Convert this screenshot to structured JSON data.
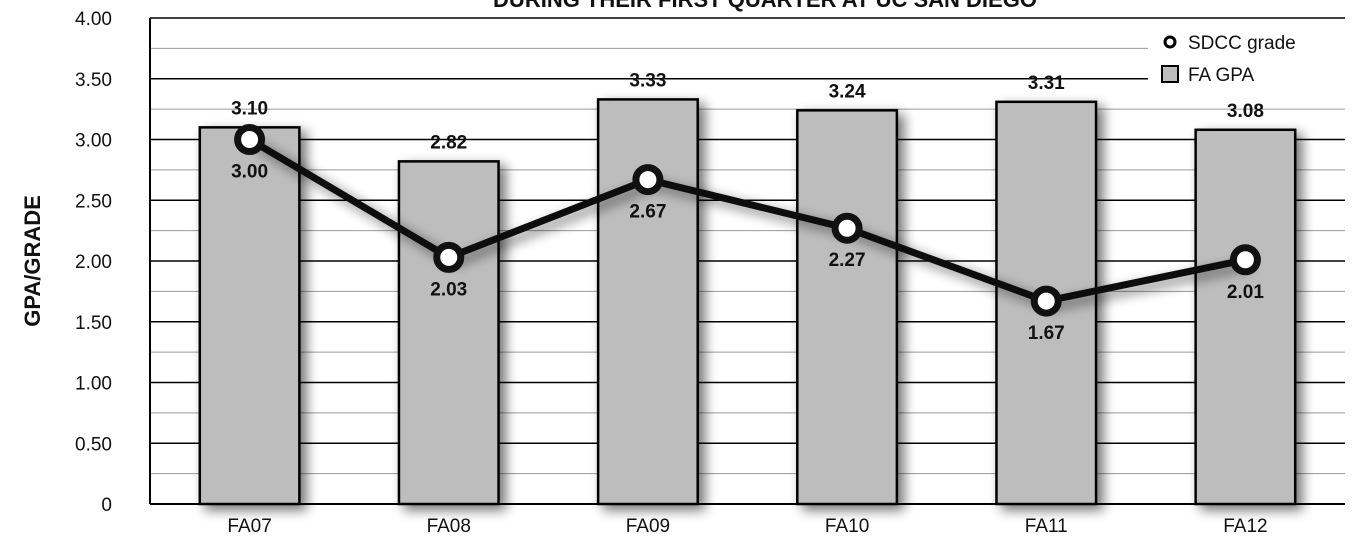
{
  "chart_data": {
    "type": "bar",
    "title": "DURING THEIR FIRST QUARTER AT UC SAN DIEGO",
    "xlabel": "",
    "ylabel": "GPA/GRADE",
    "categories": [
      "FA07",
      "FA08",
      "FA09",
      "FA10",
      "FA11",
      "FA12"
    ],
    "ylim": [
      0,
      4.0
    ],
    "yticks": [
      "0",
      "0.50",
      "1.00",
      "1.50",
      "2.00",
      "2.50",
      "3.00",
      "3.50",
      "4.00"
    ],
    "grid": true,
    "legend_position": "top-right",
    "series": [
      {
        "name": "FA GPA",
        "type": "bar",
        "color": "#bdbdbd",
        "values": [
          3.1,
          2.82,
          3.33,
          3.24,
          3.31,
          3.08
        ],
        "labels": [
          "3.10",
          "2.82",
          "3.33",
          "3.24",
          "3.31",
          "3.08"
        ]
      },
      {
        "name": "SDCC grade",
        "type": "line",
        "color": "#111111",
        "values": [
          3.0,
          2.03,
          2.67,
          2.27,
          1.67,
          2.01
        ],
        "labels": [
          "3.00",
          "2.03",
          "2.67",
          "2.27",
          "1.67",
          "2.01"
        ]
      }
    ]
  }
}
